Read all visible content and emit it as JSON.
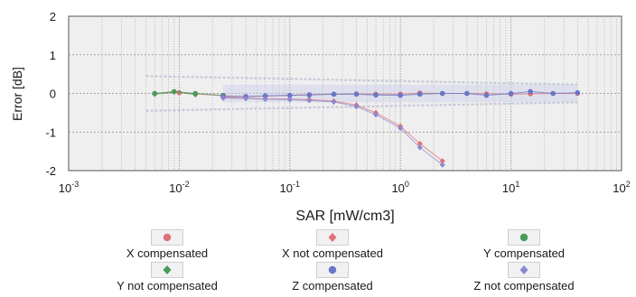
{
  "chart_data": {
    "type": "scatter",
    "x_scale": "log",
    "xlim": [
      0.001,
      100
    ],
    "ylim": [
      -2,
      2
    ],
    "xlabel": "SAR [mW/cm3]",
    "ylabel": "Error [dB]",
    "x_tick_labels": [
      "10-3",
      "10-2",
      "10-1",
      "100",
      "101",
      "102"
    ],
    "y_tick_labels": [
      "2",
      "1",
      "0",
      "-1",
      "-2"
    ],
    "y_ticks": [
      2,
      1,
      0,
      -1,
      -2
    ],
    "grid": true,
    "uncertainty_band": {
      "upper": 0.23,
      "lower": -0.23
    },
    "series": [
      {
        "name": "X compensated",
        "color": "#e0707a",
        "marker": "circle",
        "x": [
          0.006,
          0.01,
          0.025,
          0.04,
          0.06,
          0.1,
          0.15,
          0.25,
          0.4,
          0.6,
          1,
          1.5,
          2.4,
          4,
          6,
          10,
          15,
          24,
          40
        ],
        "y": [
          0.0,
          0.02,
          -0.06,
          -0.08,
          -0.07,
          -0.05,
          -0.03,
          -0.02,
          -0.01,
          -0.02,
          -0.02,
          0.01,
          0.0,
          0.0,
          -0.01,
          -0.02,
          -0.01,
          0.0,
          0.0
        ]
      },
      {
        "name": "X not compensated",
        "color": "#e0707a",
        "marker": "diamond",
        "x": [
          0.025,
          0.04,
          0.06,
          0.1,
          0.15,
          0.25,
          0.4,
          0.6,
          1,
          1.5,
          2.4
        ],
        "y": [
          -0.1,
          -0.12,
          -0.14,
          -0.15,
          -0.16,
          -0.2,
          -0.3,
          -0.5,
          -0.85,
          -1.3,
          -1.75
        ]
      },
      {
        "name": "Y compensated",
        "color": "#4a9a5a",
        "marker": "circle",
        "x": [
          0.006,
          0.009,
          0.014,
          0.025
        ],
        "y": [
          0.0,
          0.05,
          0.0,
          -0.05
        ]
      },
      {
        "name": "Y not compensated",
        "color": "#4a9a5a",
        "marker": "diamond",
        "x": [
          0.006,
          0.009,
          0.014
        ],
        "y": [
          -0.02,
          0.04,
          -0.03
        ]
      },
      {
        "name": "Z compensated",
        "color": "#6678c8",
        "marker": "circle",
        "x": [
          0.025,
          0.04,
          0.06,
          0.1,
          0.15,
          0.25,
          0.4,
          0.6,
          1,
          1.5,
          2.4,
          4,
          6,
          10,
          15,
          24,
          40
        ],
        "y": [
          -0.08,
          -0.08,
          -0.06,
          -0.05,
          -0.04,
          -0.02,
          -0.02,
          -0.04,
          -0.05,
          -0.02,
          0.0,
          0.0,
          -0.05,
          0.0,
          0.05,
          0.0,
          0.02
        ]
      },
      {
        "name": "Z not compensated",
        "color": "#8a8ad0",
        "marker": "diamond",
        "x": [
          0.025,
          0.04,
          0.06,
          0.1,
          0.15,
          0.25,
          0.4,
          0.6,
          1,
          1.5,
          2.4
        ],
        "y": [
          -0.12,
          -0.13,
          -0.15,
          -0.16,
          -0.18,
          -0.22,
          -0.34,
          -0.55,
          -0.9,
          -1.4,
          -1.85
        ]
      }
    ]
  }
}
